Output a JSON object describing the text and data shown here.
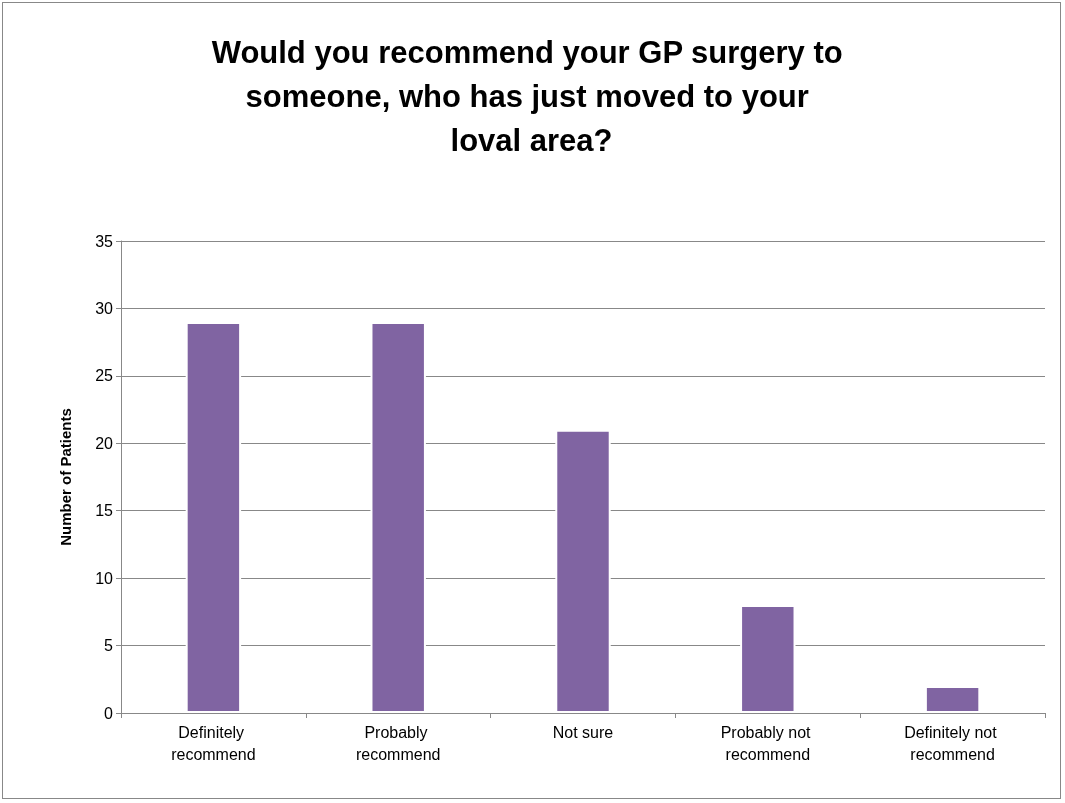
{
  "chart_data": {
    "type": "bar",
    "title": "Would you recommend your GP surgery to someone, who has just moved to your loval area?",
    "ylabel": "Number of Patients",
    "categories": [
      "Definitely recommend",
      "Probably recommend",
      "Not sure",
      "Probably not recommend",
      "Definitely not recommend"
    ],
    "values": [
      29,
      29,
      21,
      8,
      2
    ],
    "color": "#8064a2",
    "ylim": [
      0,
      35
    ],
    "yticks": [
      0,
      5,
      10,
      15,
      20,
      25,
      30,
      35
    ],
    "grid": "y"
  }
}
